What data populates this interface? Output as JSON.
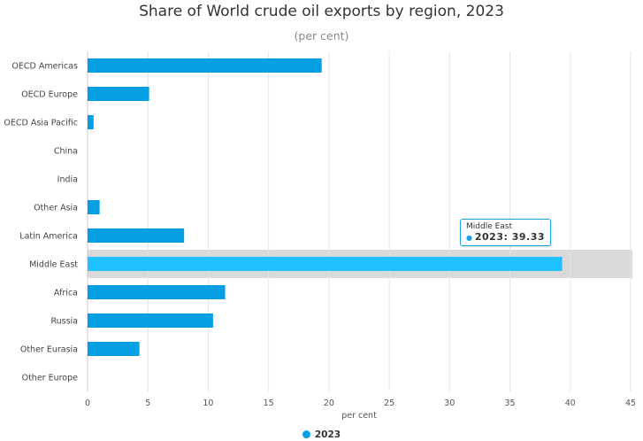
{
  "chart_data": {
    "type": "bar",
    "orientation": "horizontal",
    "title": "Share of World crude oil exports by region, 2023",
    "subtitle": "(per cent)",
    "xlabel": "per cent",
    "ylabel": "",
    "xlim": [
      0,
      45
    ],
    "xticks": [
      0,
      5,
      10,
      15,
      20,
      25,
      30,
      35,
      40,
      45
    ],
    "grid": true,
    "legend_placement": "bottom",
    "categories": [
      "OECD Americas",
      "OECD Europe",
      "OECD Asia Pacific",
      "China",
      "India",
      "Other Asia",
      "Latin America",
      "Middle East",
      "Africa",
      "Russia",
      "Other Eurasia",
      "Other Europe"
    ],
    "series": [
      {
        "name": "2023",
        "color": "#069fe3",
        "values": [
          19.4,
          5.1,
          0.5,
          0,
          0,
          1.0,
          8.0,
          39.33,
          11.4,
          10.4,
          4.3,
          0
        ]
      }
    ],
    "highlight": {
      "category": "Middle East",
      "color": "#1ec0ff"
    },
    "tooltip": {
      "title": "Middle East",
      "series": "2023",
      "value": "39.33",
      "text": "2023: 39.33"
    }
  }
}
